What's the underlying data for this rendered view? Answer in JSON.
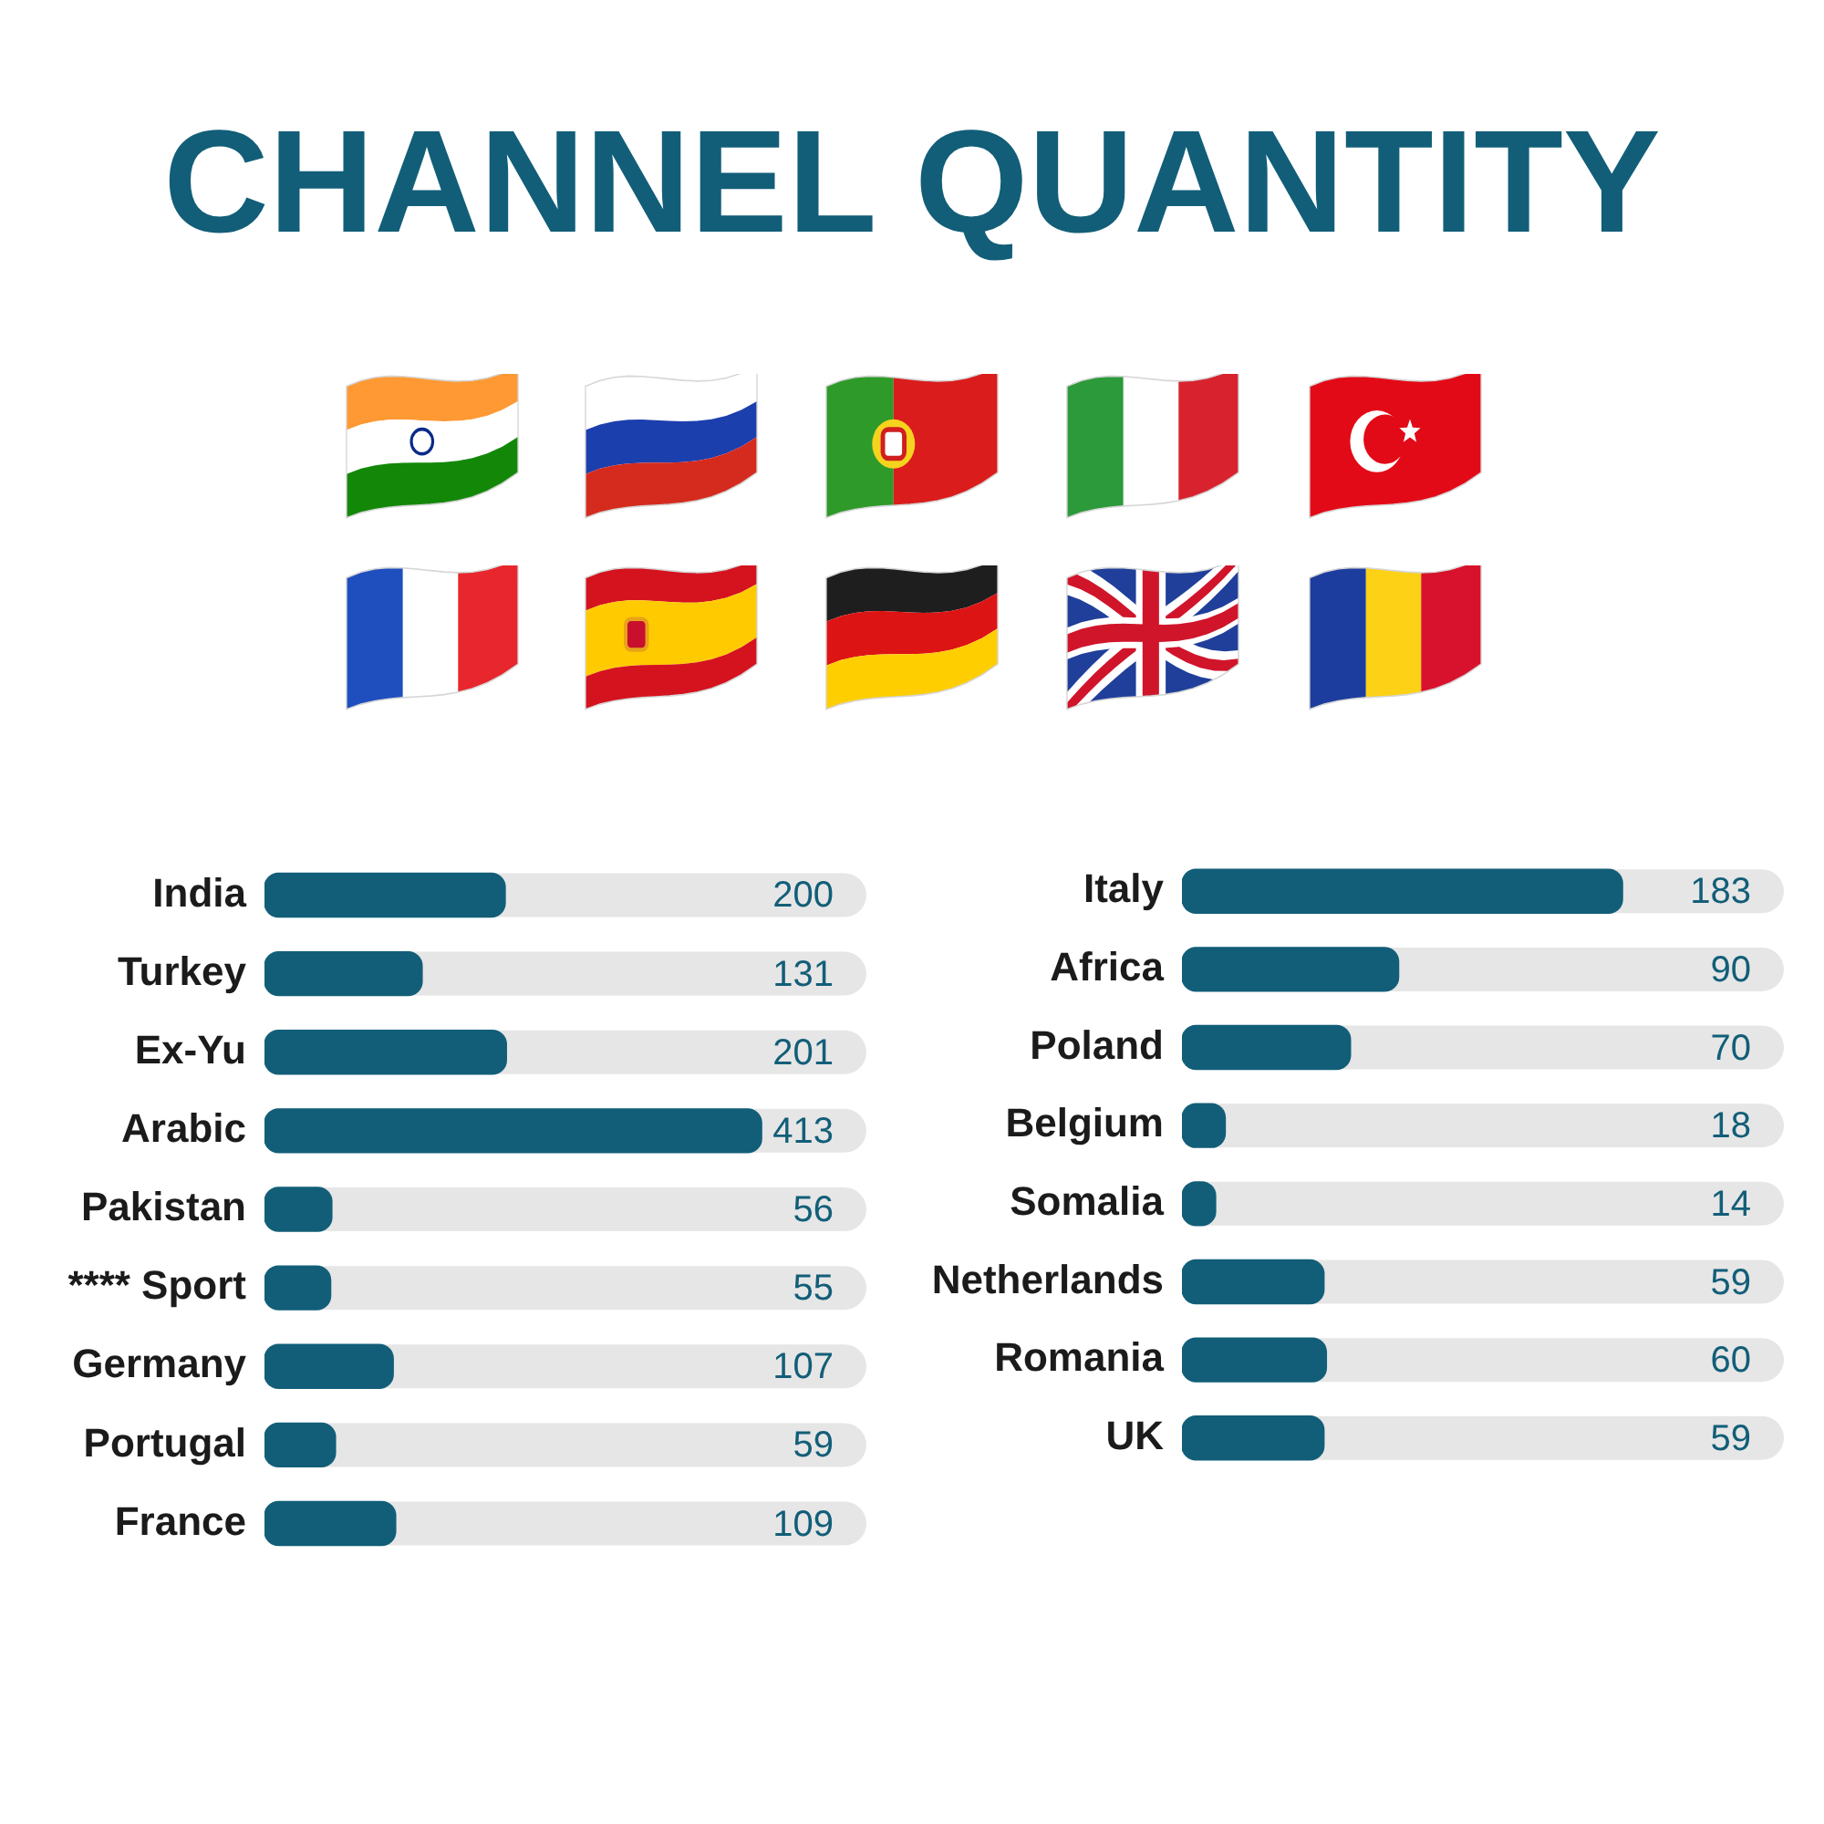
{
  "chart_data": [
    {
      "type": "bar",
      "title": "CHANNEL QUANTITY",
      "orientation": "horizontal",
      "categories": [
        "India",
        "Turkey",
        "Ex-Yu",
        "Arabic",
        "Pakistan",
        "**** Sport",
        "Germany",
        "Portugal",
        "France"
      ],
      "values": [
        200,
        131,
        201,
        413,
        56,
        55,
        107,
        59,
        109
      ],
      "color": "#125e78",
      "data_labels": true,
      "tick_labels": "y"
    },
    {
      "type": "bar",
      "orientation": "horizontal",
      "categories": [
        "Italy",
        "Africa",
        "Poland",
        "Belgium",
        "Somalia",
        "Netherlands",
        "Romania",
        "UK"
      ],
      "values": [
        183,
        90,
        70,
        18,
        14,
        59,
        60,
        59
      ],
      "color": "#125e78",
      "data_labels": true,
      "tick_labels": "y"
    }
  ]
}
